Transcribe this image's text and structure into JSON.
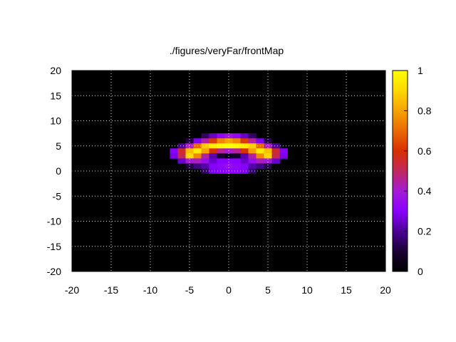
{
  "chart_data": {
    "type": "heatmap",
    "title": "./figures/veryFar/frontMap",
    "xlabel": "",
    "ylabel": "",
    "xlim": [
      -20,
      20
    ],
    "ylim": [
      -20,
      20
    ],
    "x_ticks": [
      "-20",
      "-15",
      "-10",
      "-5",
      "0",
      "5",
      "10",
      "15",
      "20"
    ],
    "y_ticks": [
      "20",
      "15",
      "10",
      "5",
      "0",
      "-5",
      "-10",
      "-15",
      "-20"
    ],
    "colorbar": {
      "range": [
        0,
        1
      ],
      "ticks": [
        "1",
        "0.8",
        "0.6",
        "0.4",
        "0.2",
        "0"
      ],
      "palette": [
        "#000000",
        "#1a0033",
        "#4b0096",
        "#8a00ff",
        "#a41bd6",
        "#c1275f",
        "#d82f00",
        "#ea6a00",
        "#f6a300",
        "#ffd800",
        "#ffff00"
      ]
    },
    "grid": true,
    "background_color": "#000000",
    "grid_color": "#ffffff",
    "cell_size": 1,
    "cells": [
      {
        "x": -3,
        "y": 7,
        "v": 0.15
      },
      {
        "x": -2,
        "y": 7,
        "v": 0.25
      },
      {
        "x": -1,
        "y": 7,
        "v": 0.33
      },
      {
        "x": 0,
        "y": 7,
        "v": 0.38
      },
      {
        "x": 1,
        "y": 7,
        "v": 0.33
      },
      {
        "x": 2,
        "y": 7,
        "v": 0.25
      },
      {
        "x": 3,
        "y": 7,
        "v": 0.15
      },
      {
        "x": -5,
        "y": 6,
        "v": 0.12
      },
      {
        "x": -4,
        "y": 6,
        "v": 0.28
      },
      {
        "x": -3,
        "y": 6,
        "v": 0.45
      },
      {
        "x": -2,
        "y": 6,
        "v": 0.62
      },
      {
        "x": -1,
        "y": 6,
        "v": 0.75
      },
      {
        "x": 0,
        "y": 6,
        "v": 0.8
      },
      {
        "x": 1,
        "y": 6,
        "v": 0.75
      },
      {
        "x": 2,
        "y": 6,
        "v": 0.62
      },
      {
        "x": 3,
        "y": 6,
        "v": 0.45
      },
      {
        "x": 4,
        "y": 6,
        "v": 0.28
      },
      {
        "x": 5,
        "y": 6,
        "v": 0.12
      },
      {
        "x": -6,
        "y": 5,
        "v": 0.2
      },
      {
        "x": -5,
        "y": 5,
        "v": 0.42
      },
      {
        "x": -4,
        "y": 5,
        "v": 0.7
      },
      {
        "x": -3,
        "y": 5,
        "v": 0.88
      },
      {
        "x": -2,
        "y": 5,
        "v": 0.95
      },
      {
        "x": -1,
        "y": 5,
        "v": 0.98
      },
      {
        "x": 0,
        "y": 5,
        "v": 1.0
      },
      {
        "x": 1,
        "y": 5,
        "v": 0.98
      },
      {
        "x": 2,
        "y": 5,
        "v": 0.95
      },
      {
        "x": 3,
        "y": 5,
        "v": 0.88
      },
      {
        "x": 4,
        "y": 5,
        "v": 0.7
      },
      {
        "x": 5,
        "y": 5,
        "v": 0.42
      },
      {
        "x": 6,
        "y": 5,
        "v": 0.2
      },
      {
        "x": -7,
        "y": 4,
        "v": 0.3
      },
      {
        "x": -6,
        "y": 4,
        "v": 0.55
      },
      {
        "x": -5,
        "y": 4,
        "v": 0.85
      },
      {
        "x": -4,
        "y": 4,
        "v": 0.95
      },
      {
        "x": -3,
        "y": 4,
        "v": 0.8
      },
      {
        "x": -2,
        "y": 4,
        "v": 0.6
      },
      {
        "x": -1,
        "y": 4,
        "v": 0.45
      },
      {
        "x": 0,
        "y": 4,
        "v": 0.4
      },
      {
        "x": 1,
        "y": 4,
        "v": 0.45
      },
      {
        "x": 2,
        "y": 4,
        "v": 0.6
      },
      {
        "x": 3,
        "y": 4,
        "v": 0.8
      },
      {
        "x": 4,
        "y": 4,
        "v": 0.95
      },
      {
        "x": 5,
        "y": 4,
        "v": 0.85
      },
      {
        "x": 6,
        "y": 4,
        "v": 0.55
      },
      {
        "x": 7,
        "y": 4,
        "v": 0.3
      },
      {
        "x": -7,
        "y": 3,
        "v": 0.28
      },
      {
        "x": -6,
        "y": 3,
        "v": 0.52
      },
      {
        "x": -5,
        "y": 3,
        "v": 0.9
      },
      {
        "x": -4,
        "y": 3,
        "v": 0.75
      },
      {
        "x": -3,
        "y": 3,
        "v": 0.45
      },
      {
        "x": -2,
        "y": 3,
        "v": 0.22
      },
      {
        "x": -1,
        "y": 3,
        "v": 0.08
      },
      {
        "x": 0,
        "y": 3,
        "v": 0.04
      },
      {
        "x": 1,
        "y": 3,
        "v": 0.08
      },
      {
        "x": 2,
        "y": 3,
        "v": 0.22
      },
      {
        "x": 3,
        "y": 3,
        "v": 0.45
      },
      {
        "x": 4,
        "y": 3,
        "v": 0.75
      },
      {
        "x": 5,
        "y": 3,
        "v": 0.9
      },
      {
        "x": 6,
        "y": 3,
        "v": 0.52
      },
      {
        "x": 7,
        "y": 3,
        "v": 0.28
      },
      {
        "x": -6,
        "y": 2,
        "v": 0.25
      },
      {
        "x": -5,
        "y": 2,
        "v": 0.4
      },
      {
        "x": -4,
        "y": 2,
        "v": 0.42
      },
      {
        "x": -3,
        "y": 2,
        "v": 0.35
      },
      {
        "x": -2,
        "y": 2,
        "v": 0.25
      },
      {
        "x": -1,
        "y": 2,
        "v": 0.3
      },
      {
        "x": 0,
        "y": 2,
        "v": 0.3
      },
      {
        "x": 1,
        "y": 2,
        "v": 0.3
      },
      {
        "x": 2,
        "y": 2,
        "v": 0.25
      },
      {
        "x": 3,
        "y": 2,
        "v": 0.35
      },
      {
        "x": 4,
        "y": 2,
        "v": 0.42
      },
      {
        "x": 5,
        "y": 2,
        "v": 0.4
      },
      {
        "x": 6,
        "y": 2,
        "v": 0.25
      },
      {
        "x": -5,
        "y": 1,
        "v": 0.12
      },
      {
        "x": -4,
        "y": 1,
        "v": 0.18
      },
      {
        "x": -3,
        "y": 1,
        "v": 0.22
      },
      {
        "x": -2,
        "y": 1,
        "v": 0.3
      },
      {
        "x": -1,
        "y": 1,
        "v": 0.32
      },
      {
        "x": 0,
        "y": 1,
        "v": 0.35
      },
      {
        "x": 1,
        "y": 1,
        "v": 0.32
      },
      {
        "x": 2,
        "y": 1,
        "v": 0.3
      },
      {
        "x": 3,
        "y": 1,
        "v": 0.22
      },
      {
        "x": 4,
        "y": 1,
        "v": 0.18
      },
      {
        "x": 5,
        "y": 1,
        "v": 0.12
      },
      {
        "x": -3,
        "y": 0,
        "v": 0.15
      },
      {
        "x": -2,
        "y": 0,
        "v": 0.28
      },
      {
        "x": -1,
        "y": 0,
        "v": 0.3
      },
      {
        "x": 0,
        "y": 0,
        "v": 0.3
      },
      {
        "x": 1,
        "y": 0,
        "v": 0.3
      },
      {
        "x": 2,
        "y": 0,
        "v": 0.28
      },
      {
        "x": 3,
        "y": 0,
        "v": 0.15
      }
    ]
  }
}
